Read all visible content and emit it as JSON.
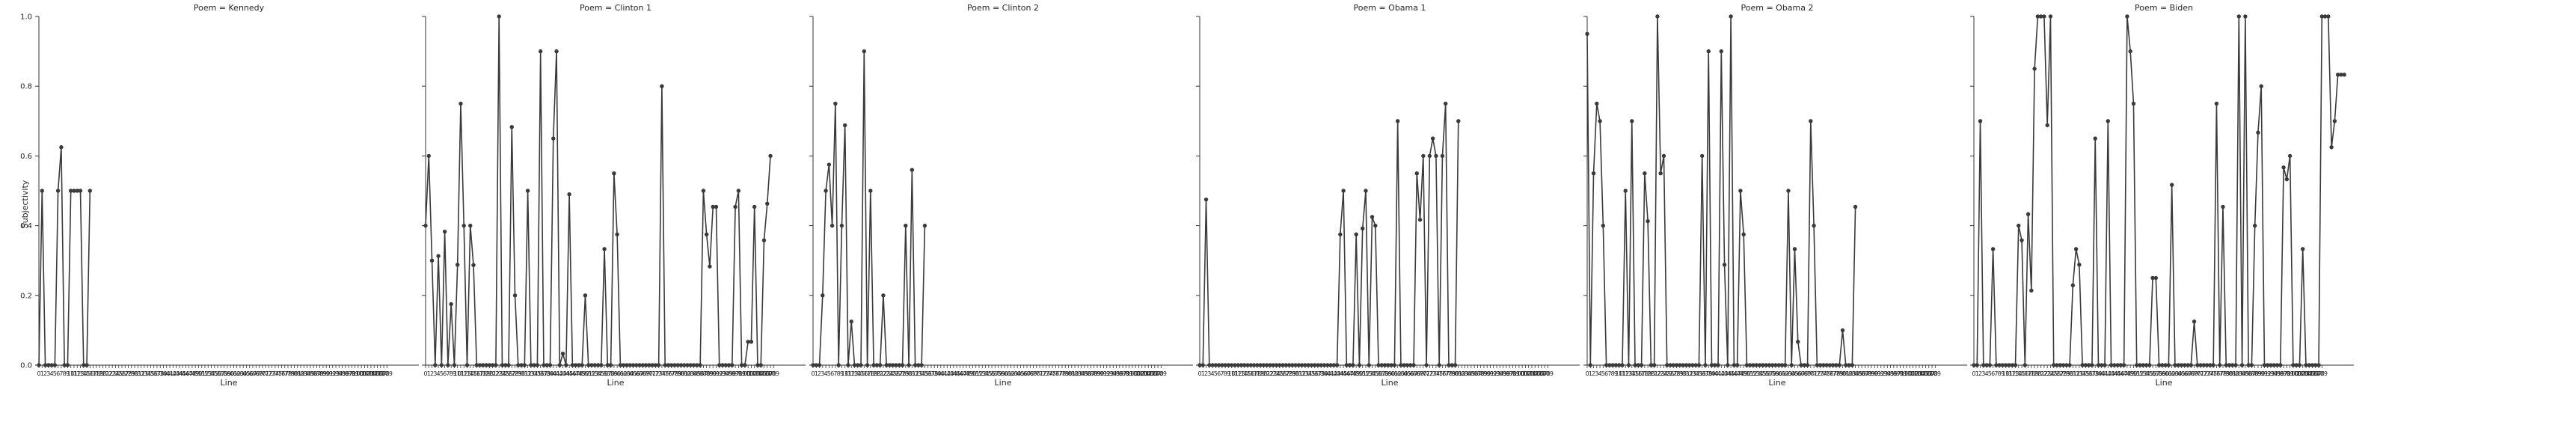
{
  "figure": {
    "ylabel": "Subjectivity"
  },
  "chart_data": [
    {
      "type": "line",
      "title": "Poem = Kennedy",
      "xlabel": "Line",
      "ylabel": "Subjectivity",
      "ylim": [
        0,
        1
      ],
      "yticks": [
        "0.0",
        "0.2",
        "0.4",
        "0.6",
        "0.8",
        "1.0"
      ],
      "x_max": 109,
      "values": [
        0,
        0.5,
        0,
        0,
        0,
        0,
        0.5,
        0.625,
        0,
        0,
        0.5,
        0.5,
        0.5,
        0.5,
        0,
        0,
        0.5
      ]
    },
    {
      "type": "line",
      "title": "Poem = Clinton 1",
      "xlabel": "Line",
      "ylabel": "Subjectivity",
      "ylim": [
        0,
        1
      ],
      "yticks": [
        "0.0",
        "0.2",
        "0.4",
        "0.6",
        "0.8",
        "1.0"
      ],
      "x_max": 109,
      "values": [
        0.4,
        0.6,
        0.3,
        0,
        0.313,
        0,
        0.383,
        0,
        0.175,
        0,
        0.288,
        0.75,
        0.4,
        0,
        0.4,
        0.287,
        0,
        0,
        0,
        0,
        0,
        0,
        0,
        1.0,
        0,
        0,
        0,
        0.683,
        0.2,
        0,
        0,
        0,
        0.5,
        0,
        0,
        0,
        0.9,
        0,
        0,
        0,
        0.65,
        0.9,
        0,
        0.033,
        0,
        0.49,
        0,
        0,
        0,
        0,
        0.2,
        0,
        0,
        0,
        0,
        0,
        0.333,
        0,
        0,
        0.55,
        0.375,
        0,
        0,
        0,
        0,
        0,
        0,
        0,
        0,
        0,
        0,
        0,
        0,
        0,
        0.8,
        0,
        0,
        0,
        0,
        0,
        0,
        0,
        0,
        0,
        0,
        0,
        0,
        0.5,
        0.375,
        0.283,
        0.454,
        0.454,
        0,
        0,
        0,
        0,
        0,
        0.454,
        0.5,
        0,
        0,
        0.067,
        0.067,
        0.454,
        0,
        0,
        0.358,
        0.463,
        0.6
      ]
    },
    {
      "type": "line",
      "title": "Poem = Clinton 2",
      "xlabel": "Line",
      "ylabel": "Subjectivity",
      "ylim": [
        0,
        1
      ],
      "yticks": [
        "0.0",
        "0.2",
        "0.4",
        "0.6",
        "0.8",
        "1.0"
      ],
      "x_max": 109,
      "values": [
        0,
        0,
        0,
        0.2,
        0.5,
        0.575,
        0.4,
        0.75,
        0,
        0.4,
        0.688,
        0,
        0.125,
        0,
        0,
        0,
        0.9,
        0,
        0.5,
        0,
        0,
        0,
        0.2,
        0,
        0,
        0,
        0,
        0,
        0,
        0.4,
        0,
        0.56,
        0,
        0,
        0,
        0.4
      ]
    },
    {
      "type": "line",
      "title": "Poem = Obama 1",
      "xlabel": "Line",
      "ylabel": "Subjectivity",
      "ylim": [
        0,
        1
      ],
      "yticks": [
        "0.0",
        "0.2",
        "0.4",
        "0.6",
        "0.8",
        "1.0"
      ],
      "x_max": 109,
      "values": [
        0,
        0,
        0.475,
        0,
        0,
        0,
        0,
        0,
        0,
        0,
        0,
        0,
        0,
        0,
        0,
        0,
        0,
        0,
        0,
        0,
        0,
        0,
        0,
        0,
        0,
        0,
        0,
        0,
        0,
        0,
        0,
        0,
        0,
        0,
        0,
        0,
        0,
        0,
        0,
        0,
        0,
        0,
        0,
        0,
        0.375,
        0.5,
        0,
        0,
        0,
        0.375,
        0,
        0.392,
        0.5,
        0,
        0.425,
        0.4,
        0,
        0,
        0,
        0,
        0,
        0,
        0.7,
        0,
        0,
        0,
        0,
        0,
        0.55,
        0.417,
        0.6,
        0,
        0.6,
        0.65,
        0.6,
        0,
        0.6,
        0.75,
        0,
        0,
        0,
        0.7
      ]
    },
    {
      "type": "line",
      "title": "Poem = Obama 2",
      "xlabel": "Line",
      "ylabel": "Subjectivity",
      "ylim": [
        0,
        1
      ],
      "yticks": [
        "0.0",
        "0.2",
        "0.4",
        "0.6",
        "0.8",
        "1.0"
      ],
      "x_max": 109,
      "values": [
        0.95,
        0,
        0.55,
        0.75,
        0.7,
        0.4,
        0,
        0,
        0,
        0,
        0,
        0,
        0.5,
        0,
        0.7,
        0,
        0,
        0,
        0.55,
        0.413,
        0,
        0,
        1.0,
        0.55,
        0.6,
        0,
        0,
        0,
        0,
        0,
        0,
        0,
        0,
        0,
        0,
        0,
        0.6,
        0,
        0.9,
        0,
        0,
        0,
        0.9,
        0.288,
        0,
        1.0,
        0,
        0,
        0.5,
        0.375,
        0,
        0,
        0,
        0,
        0,
        0,
        0,
        0,
        0,
        0,
        0,
        0,
        0,
        0.5,
        0,
        0.333,
        0.067,
        0,
        0,
        0,
        0.7,
        0.4,
        0,
        0,
        0,
        0,
        0,
        0,
        0,
        0,
        0.1,
        0,
        0,
        0,
        0.454
      ]
    },
    {
      "type": "line",
      "title": "Poem = Biden",
      "xlabel": "Line",
      "ylabel": "Subjectivity",
      "ylim": [
        0,
        1
      ],
      "yticks": [
        "0.0",
        "0.2",
        "0.4",
        "0.6",
        "0.8",
        "1.0"
      ],
      "x_max": 109,
      "values": [
        0,
        0,
        0.7,
        0,
        0,
        0,
        0.333,
        0,
        0,
        0,
        0,
        0,
        0,
        0,
        0.4,
        0.358,
        0,
        0.433,
        0.214,
        0.85,
        1.0,
        1.0,
        1.0,
        0.688,
        1.0,
        0,
        0,
        0,
        0,
        0,
        0,
        0.229,
        0.333,
        0.288,
        0,
        0,
        0,
        0,
        0.65,
        0,
        0,
        0,
        0.7,
        0,
        0,
        0,
        0,
        0,
        1.0,
        0.9,
        0.75,
        0,
        0,
        0,
        0,
        0,
        0.25,
        0.25,
        0,
        0,
        0,
        0,
        0.517,
        0,
        0,
        0,
        0,
        0,
        0,
        0.125,
        0,
        0,
        0,
        0,
        0,
        0,
        0.75,
        0,
        0.454,
        0,
        0,
        0,
        0,
        1.0,
        0,
        1.0,
        0,
        0,
        0.4,
        0.667,
        0.8,
        0,
        0,
        0,
        0,
        0,
        0,
        0.567,
        0.533,
        0.6,
        0,
        0,
        0,
        0.333,
        0,
        0,
        0,
        0,
        0,
        1.0,
        1.0,
        1.0,
        0.625,
        0.7,
        0.833,
        0.833,
        0.833
      ]
    }
  ]
}
